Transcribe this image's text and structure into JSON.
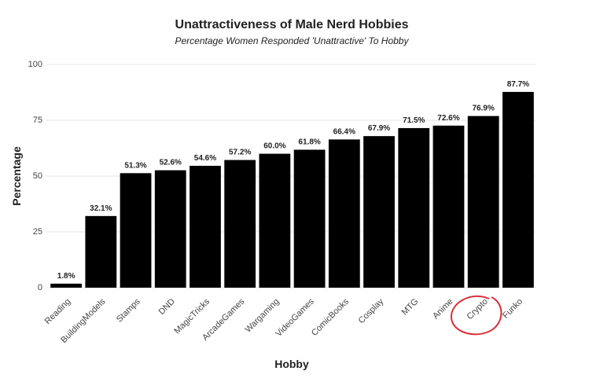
{
  "chart_data": {
    "type": "bar",
    "title": "Unattractiveness of Male Nerd Hobbies",
    "subtitle": "Percentage Women Responded 'Unattractive' To Hobby",
    "x_label": "Hobby",
    "y_label": "Percentage",
    "categories": [
      "Reading",
      "BuildingModels",
      "Stamps",
      "DND",
      "MagicTricks",
      "ArcadeGames",
      "Wargaming",
      "VideoGames",
      "ComicBooks",
      "Cosplay",
      "MTG",
      "Anime",
      "Crypto",
      "Funko"
    ],
    "values": [
      1.8,
      32.1,
      51.3,
      52.6,
      54.6,
      57.2,
      60.0,
      61.8,
      66.4,
      67.9,
      71.5,
      72.6,
      76.9,
      87.7
    ],
    "value_labels": [
      "1.8%",
      "32.1%",
      "51.3%",
      "52.6%",
      "54.6%",
      "57.2%",
      "60.0%",
      "61.8%",
      "66.4%",
      "67.9%",
      "71.5%",
      "72.6%",
      "76.9%",
      "87.7%"
    ],
    "color": "#000000",
    "ylim": [
      0,
      100
    ],
    "yticks": [
      0,
      25,
      50,
      75,
      100
    ],
    "grid": true
  }
}
